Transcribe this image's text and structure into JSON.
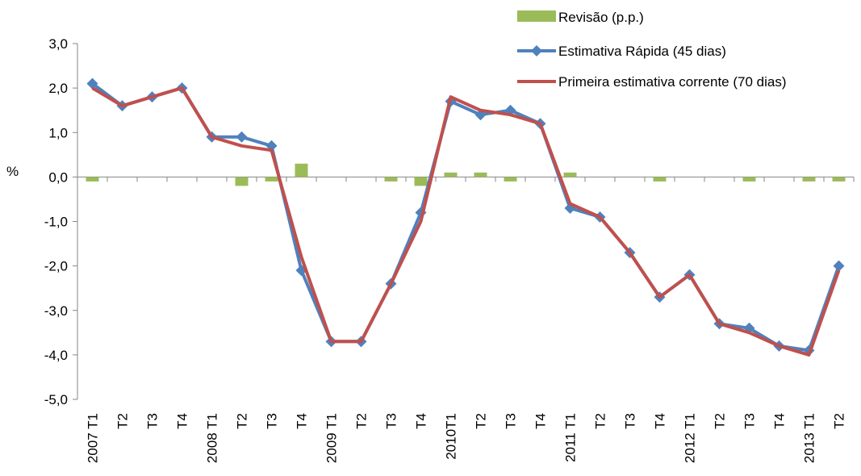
{
  "chart_data": {
    "type": "bar+line",
    "ylabel": "%",
    "ylim": [
      -5,
      3
    ],
    "yticks": [
      3,
      2,
      1,
      0,
      -1,
      -2,
      -3,
      -4,
      -5
    ],
    "ytick_labels": [
      "3,0",
      "2,0",
      "1,0",
      "0,0",
      "-1,0",
      "-2,0",
      "-3,0",
      "-4,0",
      "-5,0"
    ],
    "categories": [
      "2007 T1",
      "T2",
      "T3",
      "T4",
      "2008 T1",
      "T2",
      "T3",
      "T4",
      "2009 T1",
      "T2",
      "T3",
      "T4",
      "2010T1",
      "T2",
      "T3",
      "T4",
      "2011 T1",
      "T2",
      "T3",
      "T4",
      "2012 T1",
      "T2",
      "T3",
      "T4",
      "2013 T1",
      "T2"
    ],
    "legend_position": "top-right",
    "series": [
      {
        "name": "Revisão (p.p.)",
        "type": "bar",
        "color": "#9BBB59",
        "values": [
          -0.1,
          0,
          0,
          0,
          0,
          -0.2,
          -0.1,
          0.3,
          0,
          0,
          -0.1,
          -0.2,
          0.1,
          0.1,
          -0.1,
          0,
          0.1,
          0,
          0,
          -0.1,
          0,
          0,
          -0.1,
          0,
          -0.1,
          -0.1
        ]
      },
      {
        "name": "Estimativa Rápida (45 dias)",
        "type": "line",
        "color": "#4F81BD",
        "marker": "diamond",
        "values": [
          2.1,
          1.6,
          1.8,
          2.0,
          0.9,
          0.9,
          0.7,
          -2.1,
          -3.7,
          -3.7,
          -2.4,
          -0.8,
          1.7,
          1.4,
          1.5,
          1.2,
          -0.7,
          -0.9,
          -1.7,
          -2.7,
          -2.2,
          -3.3,
          -3.4,
          -3.8,
          -3.9,
          -2.0
        ]
      },
      {
        "name": "Primeira estimativa  corrente (70 dias)",
        "type": "line",
        "color": "#C0504D",
        "values": [
          2.0,
          1.6,
          1.8,
          2.0,
          0.9,
          0.7,
          0.6,
          -1.8,
          -3.7,
          -3.7,
          -2.4,
          -1.0,
          1.8,
          1.5,
          1.4,
          1.2,
          -0.6,
          -0.9,
          -1.7,
          -2.7,
          -2.2,
          -3.3,
          -3.5,
          -3.8,
          -4.0,
          -2.1
        ]
      }
    ]
  }
}
